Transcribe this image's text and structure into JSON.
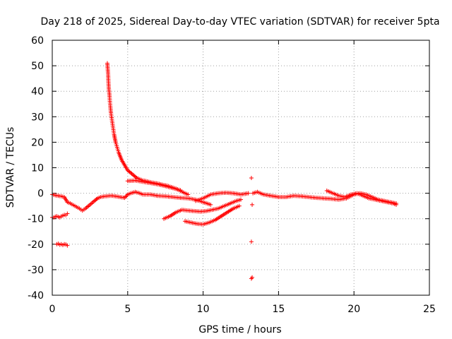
{
  "chart_data": {
    "type": "scatter",
    "title": "Day 218 of 2025, Sidereal Day-to-day VTEC variation (SDTVAR) for receiver 5pta",
    "xlabel": "GPS time / hours",
    "ylabel": "SDTVAR / TECUs",
    "xlim": [
      0,
      25
    ],
    "ylim": [
      -40,
      60
    ],
    "xticks": [
      0,
      5,
      10,
      15,
      20,
      25
    ],
    "yticks": [
      -40,
      -30,
      -20,
      -10,
      0,
      10,
      20,
      30,
      40,
      50,
      60
    ],
    "grid": true,
    "marker": "+",
    "color": "#ff0000",
    "series": [
      {
        "name": "main-trace",
        "x": [
          0.0,
          0.2,
          0.4,
          0.6,
          0.8,
          1.0,
          1.2,
          1.5,
          1.8,
          2.0,
          2.2,
          2.5,
          2.8,
          3.0,
          3.2,
          3.5,
          3.8,
          4.0,
          4.2,
          4.5,
          4.8,
          5.0,
          5.2,
          5.5,
          5.8,
          6.0,
          6.5,
          7.0,
          7.5,
          8.0,
          8.5,
          9.0,
          9.5,
          10.0,
          10.5
        ],
        "y": [
          -0.5,
          -0.8,
          -1.0,
          -1.2,
          -1.5,
          -3.5,
          -4.0,
          -5.0,
          -6.0,
          -6.8,
          -6.0,
          -4.5,
          -3.0,
          -2.0,
          -1.5,
          -1.2,
          -1.0,
          -1.0,
          -1.2,
          -1.5,
          -1.8,
          -0.5,
          0.0,
          0.5,
          0.0,
          -0.5,
          -0.5,
          -1.0,
          -1.2,
          -1.5,
          -1.8,
          -2.0,
          -2.5,
          -3.5,
          -4.5
        ]
      },
      {
        "name": "start-segment",
        "x": [
          0.0,
          0.1,
          0.2,
          0.3,
          0.4,
          0.5,
          0.6,
          0.7,
          0.8,
          0.9,
          1.0
        ],
        "y": [
          -9.5,
          -9.5,
          -9.2,
          -9.0,
          -9.3,
          -9.5,
          -9.0,
          -8.8,
          -8.5,
          -8.6,
          -8.0
        ]
      },
      {
        "name": "early-cluster",
        "x": [
          0.3,
          0.4,
          0.5,
          0.6,
          0.7,
          0.8,
          0.9,
          1.0
        ],
        "y": [
          -20.0,
          -19.8,
          -20.2,
          -20.0,
          -20.3,
          -20.0,
          -20.1,
          -20.5
        ]
      },
      {
        "name": "decay-arc",
        "x": [
          3.65,
          3.7,
          3.72,
          3.75,
          3.8,
          3.82,
          3.85,
          3.9,
          3.95,
          4.0,
          4.05,
          4.1,
          4.15,
          4.2,
          4.3,
          4.4,
          4.5,
          4.6,
          4.7,
          4.8,
          4.9,
          5.0,
          5.2,
          5.4,
          5.6,
          5.8,
          6.0,
          6.2,
          6.4,
          6.6,
          6.8,
          7.0,
          7.2,
          7.4,
          7.6,
          7.8,
          8.0,
          8.2,
          8.4,
          8.6,
          8.8,
          9.0
        ],
        "y": [
          51.0,
          47.0,
          44.0,
          41.0,
          38.0,
          36.0,
          34.0,
          31.0,
          29.0,
          27.0,
          25.0,
          23.0,
          21.5,
          20.0,
          18.0,
          16.0,
          14.5,
          13.0,
          12.0,
          11.0,
          10.0,
          9.0,
          8.0,
          7.0,
          6.0,
          5.5,
          5.0,
          4.8,
          4.5,
          4.2,
          4.0,
          3.8,
          3.5,
          3.2,
          3.0,
          2.6,
          2.2,
          1.8,
          1.2,
          0.6,
          0.0,
          -0.5
        ]
      },
      {
        "name": "flat-band",
        "x": [
          5.0,
          5.5,
          6.0,
          6.5,
          7.0,
          7.5,
          8.0,
          8.5
        ],
        "y": [
          4.8,
          5.0,
          4.5,
          4.0,
          3.5,
          2.8,
          2.0,
          1.2
        ]
      },
      {
        "name": "middle-arc",
        "x": [
          7.4,
          7.8,
          8.2,
          8.6,
          9.0,
          9.4,
          9.8,
          10.2,
          10.6,
          11.0,
          11.4,
          11.8,
          12.2,
          12.5
        ],
        "y": [
          -10.0,
          -9.0,
          -7.5,
          -6.5,
          -6.8,
          -7.0,
          -7.2,
          -7.0,
          -6.5,
          -6.0,
          -5.0,
          -4.0,
          -3.0,
          -2.5
        ]
      },
      {
        "name": "lower-arc",
        "x": [
          8.8,
          9.2,
          9.6,
          10.0,
          10.4,
          10.8,
          11.2,
          11.6,
          12.0,
          12.4
        ],
        "y": [
          -11.0,
          -11.5,
          -12.0,
          -12.2,
          -11.5,
          -10.5,
          -9.0,
          -7.5,
          -6.0,
          -5.0
        ]
      },
      {
        "name": "recovery",
        "x": [
          9.5,
          10.0,
          10.5,
          11.0,
          11.5,
          12.0,
          12.5,
          13.0
        ],
        "y": [
          -3.0,
          -2.0,
          -0.5,
          0.0,
          0.2,
          0.0,
          -0.5,
          0.0
        ]
      },
      {
        "name": "outliers",
        "x": [
          13.2,
          13.25,
          13.2,
          13.25,
          13.2
        ],
        "y": [
          6.0,
          -4.5,
          -19.0,
          -33.0,
          -33.5
        ]
      },
      {
        "name": "late-trace",
        "x": [
          13.3,
          13.6,
          14.0,
          14.5,
          15.0,
          15.5,
          16.0,
          16.5,
          17.0,
          17.5,
          18.0,
          18.5,
          19.0,
          19.5,
          20.0,
          20.4,
          20.8,
          21.2,
          21.6,
          22.0,
          22.4,
          22.8
        ],
        "y": [
          0.0,
          0.5,
          -0.5,
          -1.0,
          -1.5,
          -1.5,
          -1.0,
          -1.2,
          -1.5,
          -1.8,
          -2.0,
          -2.2,
          -2.5,
          -2.0,
          -0.5,
          0.0,
          -0.5,
          -1.5,
          -2.5,
          -3.0,
          -3.5,
          -4.0
        ]
      },
      {
        "name": "late-band",
        "x": [
          18.2,
          18.6,
          19.0,
          19.4,
          19.8,
          20.2,
          20.6,
          21.0,
          21.4,
          21.8,
          22.2,
          22.6,
          22.8
        ],
        "y": [
          1.0,
          0.0,
          -1.0,
          -1.5,
          -0.5,
          0.0,
          -1.0,
          -2.0,
          -2.5,
          -3.0,
          -3.5,
          -4.0,
          -4.5
        ]
      }
    ]
  }
}
